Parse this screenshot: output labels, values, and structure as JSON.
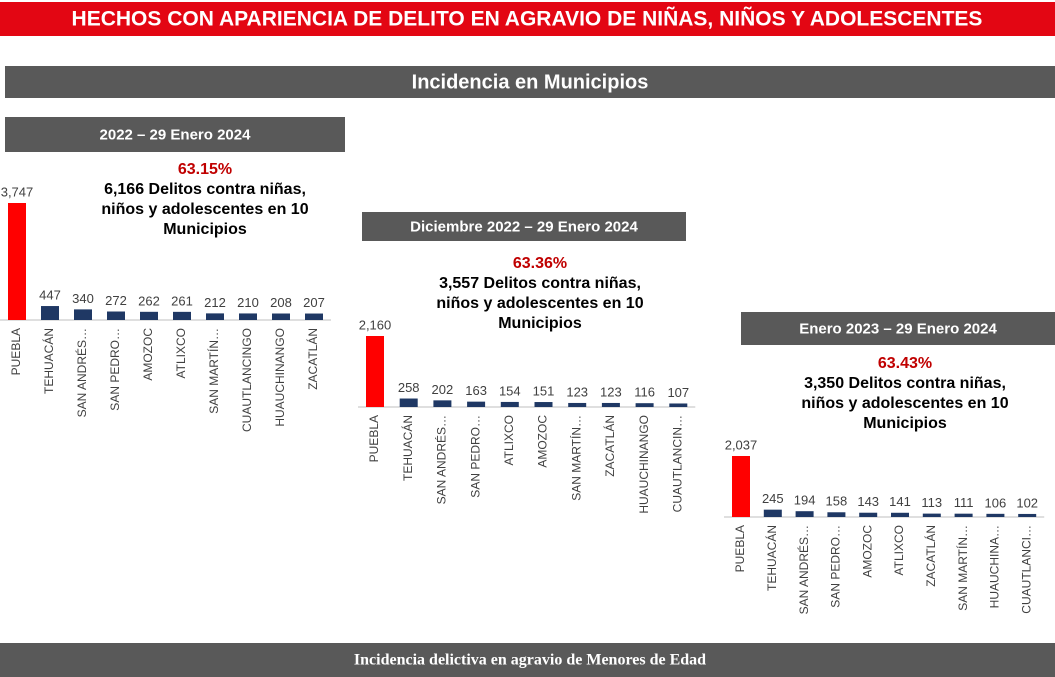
{
  "header": {
    "title": "HECHOS CON APARIENCIA DE DELITO EN AGRAVIO DE NIÑAS, NIÑOS Y ADOLESCENTES",
    "section": "Incidencia en Municipios",
    "footer": "Incidencia delictiva en agravio de Menores de Edad"
  },
  "chart_data": [
    {
      "type": "bar",
      "title": "2022 – 29 Enero 2024",
      "annotation_percent": "63.15%",
      "annotation": [
        "6,166 Delitos contra niñas,",
        "niños y adolescentes en 10",
        "Municipios"
      ],
      "categories": [
        "PUEBLA",
        "TEHUACÁN",
        "SAN ANDRÉS…",
        "SAN PEDRO…",
        "AMOZOC",
        "ATLIXCO",
        "SAN MARTÍN…",
        "CUAUTLANCINGO",
        "HUAUCHINANGO",
        "ZACATLÁN"
      ],
      "values": [
        3747,
        447,
        340,
        272,
        262,
        261,
        212,
        210,
        208,
        207
      ],
      "value_labels": [
        "3,747",
        "447",
        "340",
        "272",
        "262",
        "261",
        "212",
        "210",
        "208",
        "207"
      ],
      "colors": [
        "#ff0000",
        "#1f3864",
        "#1f3864",
        "#1f3864",
        "#1f3864",
        "#1f3864",
        "#1f3864",
        "#1f3864",
        "#1f3864",
        "#1f3864"
      ]
    },
    {
      "type": "bar",
      "title": "Diciembre 2022 – 29 Enero 2024",
      "annotation_percent": "63.36%",
      "annotation": [
        "3,557 Delitos contra niñas,",
        "niños y adolescentes en 10",
        "Municipios"
      ],
      "categories": [
        "PUEBLA",
        "TEHUACÁN",
        "SAN ANDRÉS…",
        "SAN PEDRO…",
        "ATLIXCO",
        "AMOZOC",
        "SAN MARTÍN…",
        "ZACATLÁN",
        "HUAUCHINANGO",
        "CUAUTLANCIN…"
      ],
      "values": [
        2160,
        258,
        202,
        163,
        154,
        151,
        123,
        123,
        116,
        107
      ],
      "value_labels": [
        "2,160",
        "258",
        "202",
        "163",
        "154",
        "151",
        "123",
        "123",
        "116",
        "107"
      ],
      "colors": [
        "#ff0000",
        "#1f3864",
        "#1f3864",
        "#1f3864",
        "#1f3864",
        "#1f3864",
        "#1f3864",
        "#1f3864",
        "#1f3864",
        "#1f3864"
      ]
    },
    {
      "type": "bar",
      "title": "Enero 2023 – 29 Enero 2024",
      "annotation_percent": "63.43%",
      "annotation": [
        "3,350 Delitos contra niñas,",
        "niños y adolescentes en 10",
        "Municipios"
      ],
      "categories": [
        "PUEBLA",
        "TEHUACÁN",
        "SAN ANDRÉS…",
        "SAN PEDRO…",
        "AMOZOC",
        "ATLIXCO",
        "ZACATLÁN",
        "SAN MARTÍN…",
        "HUAUCHINA…",
        "CUAUTLANCI…"
      ],
      "values": [
        2037,
        245,
        194,
        158,
        143,
        141,
        113,
        111,
        106,
        102
      ],
      "value_labels": [
        "2,037",
        "245",
        "194",
        "158",
        "143",
        "141",
        "113",
        "111",
        "106",
        "102"
      ],
      "colors": [
        "#ff0000",
        "#1f3864",
        "#1f3864",
        "#1f3864",
        "#1f3864",
        "#1f3864",
        "#1f3864",
        "#1f3864",
        "#1f3864",
        "#1f3864"
      ]
    }
  ]
}
